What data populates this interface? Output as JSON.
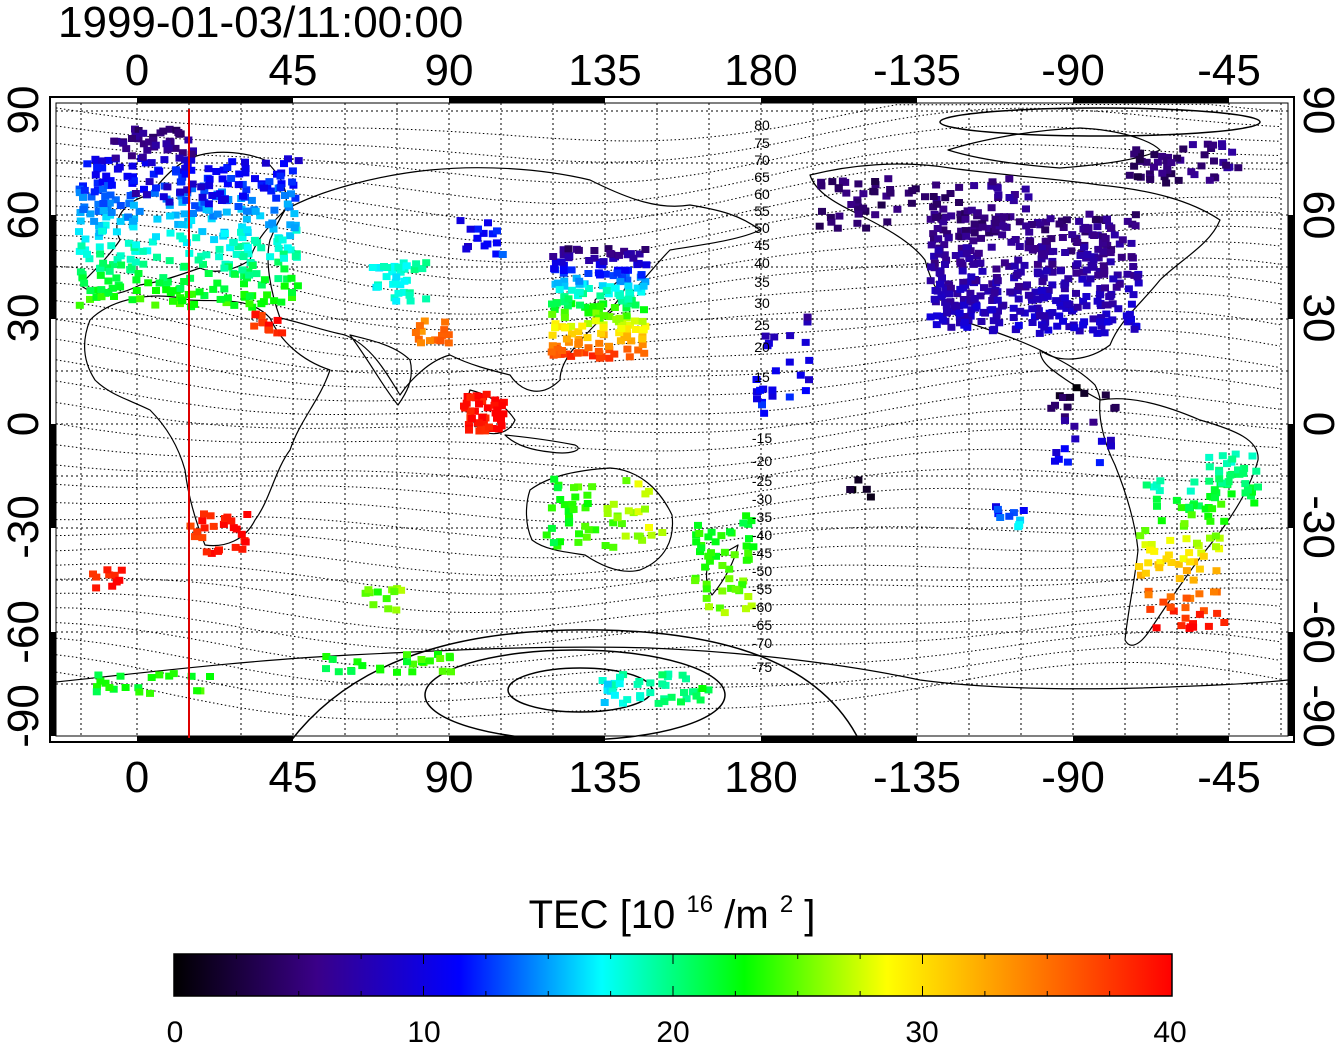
{
  "timestamp": "1999-01-03/11:00:00",
  "map": {
    "top_longitude_labels": [
      "0",
      "45",
      "90",
      "135",
      "180",
      "-135",
      "-90",
      "-45"
    ],
    "bottom_longitude_labels": [
      "0",
      "45",
      "90",
      "135",
      "180",
      "-135",
      "-90",
      "-45"
    ],
    "left_latitude_labels": [
      "90",
      "60",
      "30",
      "0",
      "-30",
      "-60",
      "-90"
    ],
    "right_latitude_labels": [
      "90",
      "60",
      "30",
      "0",
      "-30",
      "-60",
      "-90"
    ],
    "magnetic_latitude_labels_north": [
      "80",
      "75",
      "70",
      "65",
      "60",
      "55",
      "50",
      "45",
      "40",
      "35",
      "30",
      "25",
      "20",
      "15"
    ],
    "magnetic_latitude_labels_south": [
      "-15",
      "-20",
      "-25",
      "-30",
      "-35",
      "-40",
      "-45",
      "-50",
      "-55",
      "-60",
      "-65",
      "-70",
      "-75"
    ],
    "local_noon_line_color": "#dd0000"
  },
  "colorbar": {
    "title_main": "TEC",
    "title_unit_prefix": "[10",
    "title_unit_exp": "16",
    "title_unit_mid": "/m",
    "title_unit_exp2": "2",
    "title_unit_suffix": "]",
    "tick_labels": [
      "0",
      "10",
      "20",
      "30",
      "40"
    ],
    "colors": [
      "#000000",
      "#3a0088",
      "#0000ff",
      "#00ffff",
      "#00ff00",
      "#ffff00",
      "#ff8000",
      "#ff0000"
    ]
  }
}
